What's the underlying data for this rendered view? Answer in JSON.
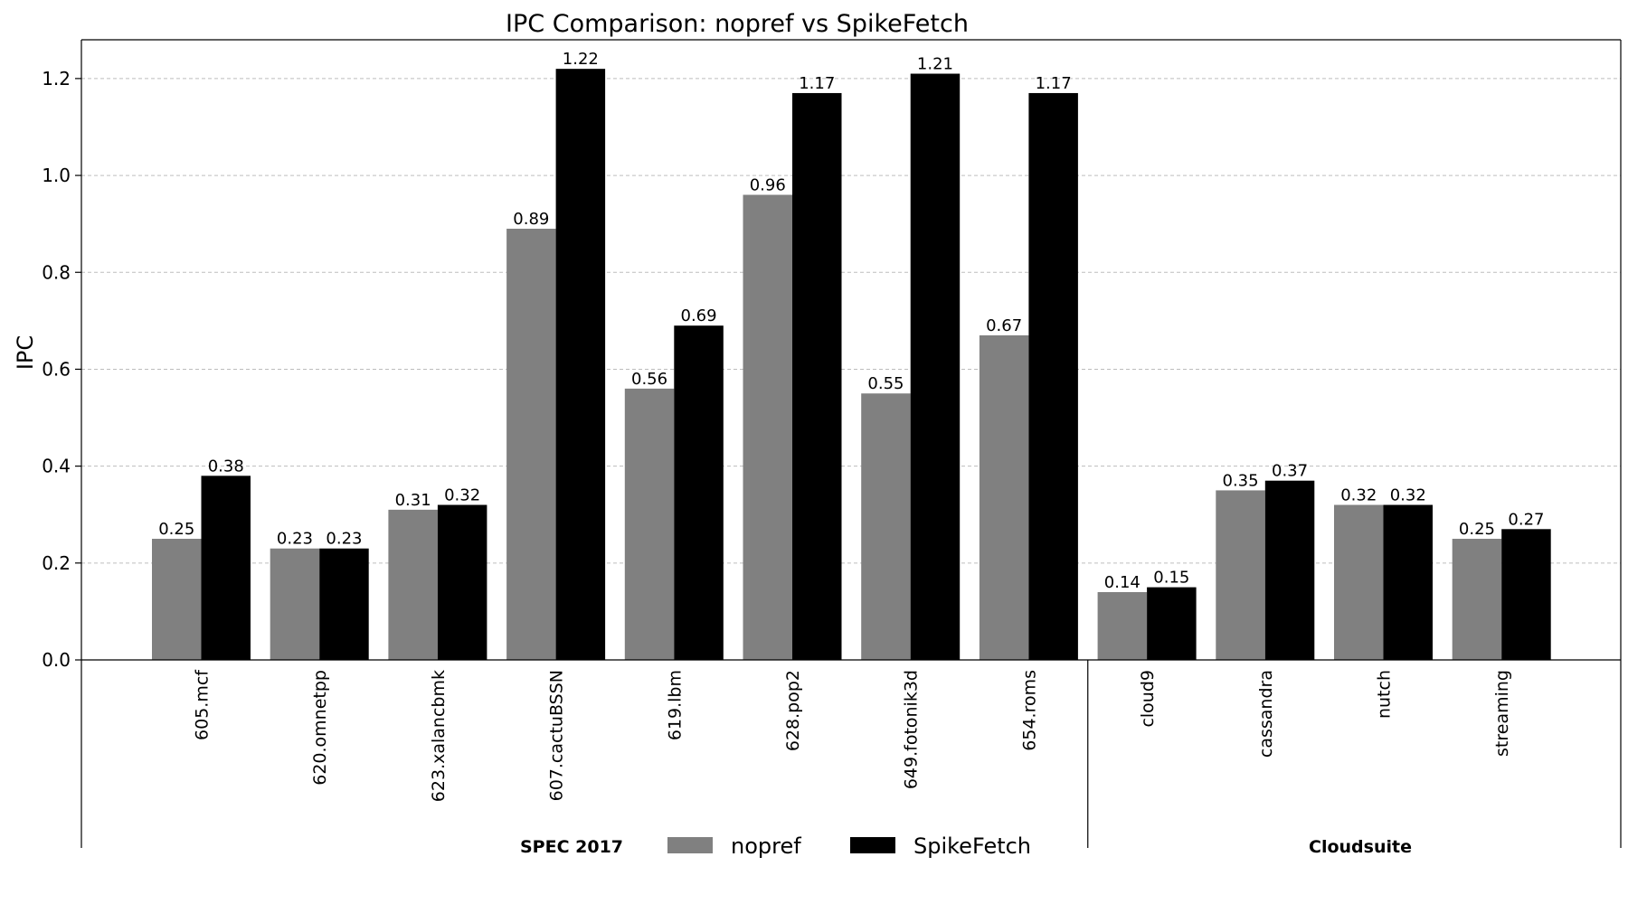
{
  "chart_data": {
    "type": "bar",
    "title": "IPC Comparison: nopref vs SpikeFetch",
    "ylabel": "IPC",
    "xlabel": "",
    "ylim": [
      0,
      1.28
    ],
    "yticks": [
      0.0,
      0.2,
      0.4,
      0.6,
      0.8,
      1.0,
      1.2
    ],
    "ytick_labels": [
      "0.0",
      "0.2",
      "0.4",
      "0.6",
      "0.8",
      "1.0",
      "1.2"
    ],
    "grid": true,
    "categories": [
      "605.mcf",
      "620.omnetpp",
      "623.xalancbmk",
      "607.cactuBSSN",
      "619.lbm",
      "628.pop2",
      "649.fotonik3d",
      "654.roms",
      "cloud9",
      "cassandra",
      "nutch",
      "streaming"
    ],
    "series": [
      {
        "name": "nopref",
        "color": "#808080",
        "values": [
          0.25,
          0.23,
          0.31,
          0.89,
          0.56,
          0.96,
          0.55,
          0.67,
          0.14,
          0.35,
          0.32,
          0.25
        ],
        "labels": [
          "0.25",
          "0.23",
          "0.31",
          "0.89",
          "0.56",
          "0.96",
          "0.55",
          "0.67",
          "0.14",
          "0.35",
          "0.32",
          "0.25"
        ]
      },
      {
        "name": "SpikeFetch",
        "color": "#000000",
        "values": [
          0.38,
          0.23,
          0.32,
          1.22,
          0.69,
          1.17,
          1.21,
          1.17,
          0.15,
          0.37,
          0.32,
          0.27
        ],
        "labels": [
          "0.38",
          "0.23",
          "0.32",
          "1.22",
          "0.69",
          "1.17",
          "1.21",
          "1.17",
          "0.15",
          "0.37",
          "0.32",
          "0.27"
        ]
      }
    ],
    "groups": [
      {
        "name": "SPEC 2017",
        "start": 0,
        "end": 7
      },
      {
        "name": "Cloudsuite",
        "start": 8,
        "end": 11
      }
    ],
    "legend": {
      "placement": "bottom-center",
      "entries": [
        "nopref",
        "SpikeFetch"
      ]
    }
  }
}
